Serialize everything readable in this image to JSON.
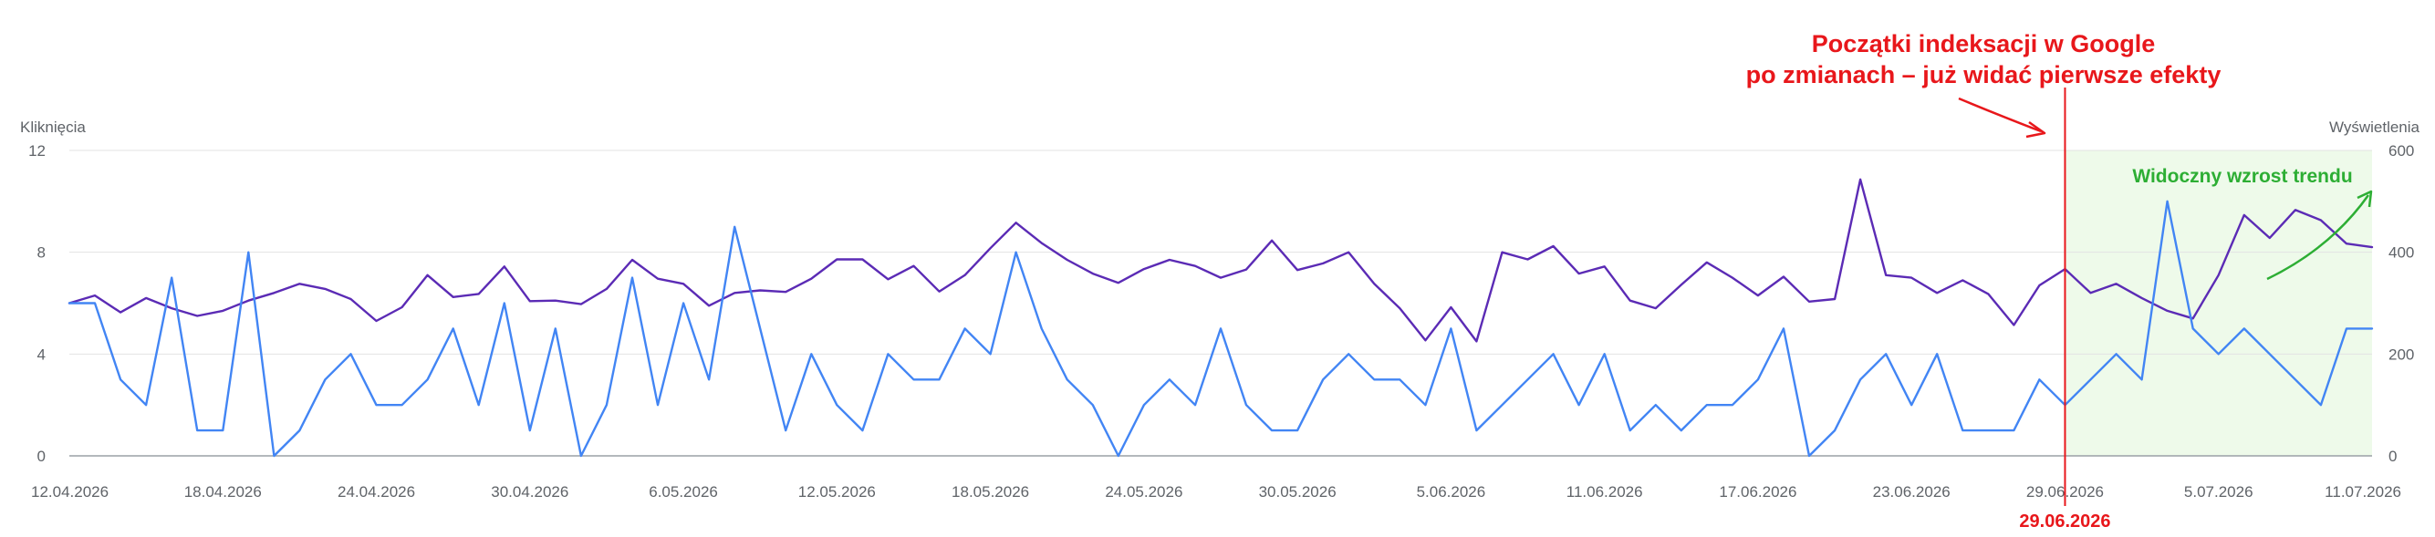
{
  "chart_data": {
    "type": "line",
    "left_axis_label": "Kliknięcia",
    "right_axis_label": "Wyświetlenia",
    "y_left": {
      "min": 0,
      "max": 12,
      "ticks": [
        "0",
        "4",
        "8",
        "12"
      ]
    },
    "y_right": {
      "min": 0,
      "max": 600,
      "ticks": [
        "0",
        "200",
        "400",
        "600"
      ]
    },
    "x_start": "2026-04-12",
    "x_end": "2026-07-11",
    "x_tick_labels": [
      "12.04.2026",
      "18.04.2026",
      "24.04.2026",
      "30.04.2026",
      "6.05.2026",
      "12.05.2026",
      "18.05.2026",
      "24.05.2026",
      "30.05.2026",
      "5.06.2026",
      "11.06.2026",
      "17.06.2026",
      "23.06.2026",
      "29.06.2026",
      "5.07.2026",
      "11.07.2026"
    ],
    "grid": true,
    "series": [
      {
        "axis": "left",
        "color": "#4285f4",
        "values": [
          6,
          6,
          3,
          2,
          7,
          1,
          1,
          8,
          0,
          1,
          3,
          4,
          2,
          2,
          3,
          5,
          2,
          6,
          1,
          5,
          0,
          2,
          7,
          2,
          6,
          3,
          9,
          5,
          1,
          4,
          2,
          1,
          4,
          3,
          3,
          5,
          4,
          8,
          5,
          3,
          2,
          0,
          2,
          3,
          2,
          5,
          2,
          1,
          1,
          3,
          4,
          3,
          3,
          2,
          5,
          1,
          2,
          3,
          4,
          2,
          4,
          1,
          2,
          1,
          2,
          2,
          3,
          5,
          0,
          1,
          3,
          4,
          2,
          4,
          1,
          1,
          1,
          3,
          2,
          3,
          4,
          3,
          10,
          5,
          4,
          5,
          4,
          3,
          2,
          5,
          5
        ]
      },
      {
        "axis": "right",
        "color": "#5b2bb5",
        "values": [
          300,
          315,
          282,
          310,
          290,
          275,
          285,
          305,
          320,
          338,
          328,
          308,
          265,
          292,
          355,
          312,
          318,
          372,
          304,
          305,
          298,
          328,
          385,
          348,
          338,
          295,
          320,
          325,
          322,
          348,
          386,
          386,
          347,
          373,
          323,
          355,
          408,
          458,
          418,
          385,
          358,
          340,
          367,
          385,
          373,
          350,
          366,
          423,
          365,
          378,
          400,
          338,
          290,
          227,
          292,
          225,
          400,
          386,
          412,
          358,
          372,
          305,
          290,
          336,
          380,
          350,
          315,
          352,
          303,
          308,
          543,
          355,
          350,
          320,
          345,
          318,
          257,
          335,
          367,
          320,
          338,
          310,
          285,
          270,
          355,
          473,
          428,
          483,
          463,
          417,
          410
        ]
      }
    ],
    "annotations": {
      "headline_line1": "Początki indeksacji w Google",
      "headline_line2": "po zmianach – już widać pierwsze efekty",
      "marker_date": "29.06.2026",
      "marker_color": "#e8171b",
      "trend_label": "Widoczny wzrost trendu",
      "trend_color": "#2dae34",
      "highlight_from": "2026-06-29",
      "highlight_to": "2026-07-11",
      "highlight_color": "#eefaea"
    }
  }
}
